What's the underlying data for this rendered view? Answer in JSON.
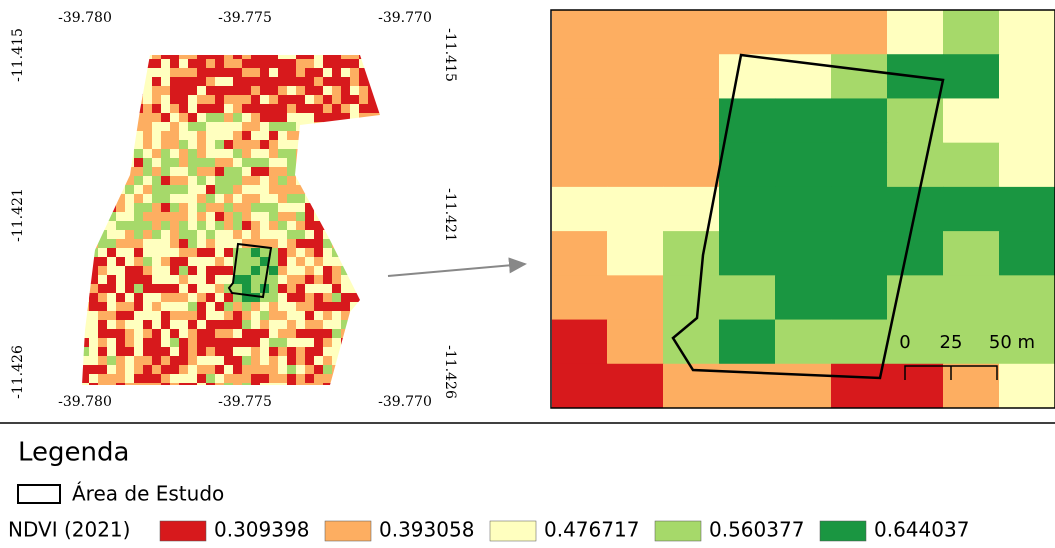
{
  "overview_map": {
    "x_labels_top": [
      "-39.780",
      "-39.775",
      "-39.770"
    ],
    "x_labels_bottom": [
      "-39.780",
      "-39.775",
      "-39.770"
    ],
    "y_labels_left": [
      "-11.415",
      "-11.421",
      "-11.426"
    ],
    "y_labels_right": [
      "-11.415",
      "-11.421",
      "-11.426"
    ]
  },
  "detail_map": {
    "scale_bar": {
      "labels": [
        "0",
        "25",
        "50 m"
      ]
    }
  },
  "legend": {
    "title": "Legenda",
    "study_area": "Área de Estudo",
    "ndvi_label": "NDVI (2021)",
    "classes": [
      {
        "label": "0.309398",
        "color": "#d7191c"
      },
      {
        "label": "0.393058",
        "color": "#fdae61"
      },
      {
        "label": "0.476717",
        "color": "#ffffbf"
      },
      {
        "label": "0.560377",
        "color": "#a6d96a"
      },
      {
        "label": "0.644037",
        "color": "#1a9641"
      }
    ]
  }
}
